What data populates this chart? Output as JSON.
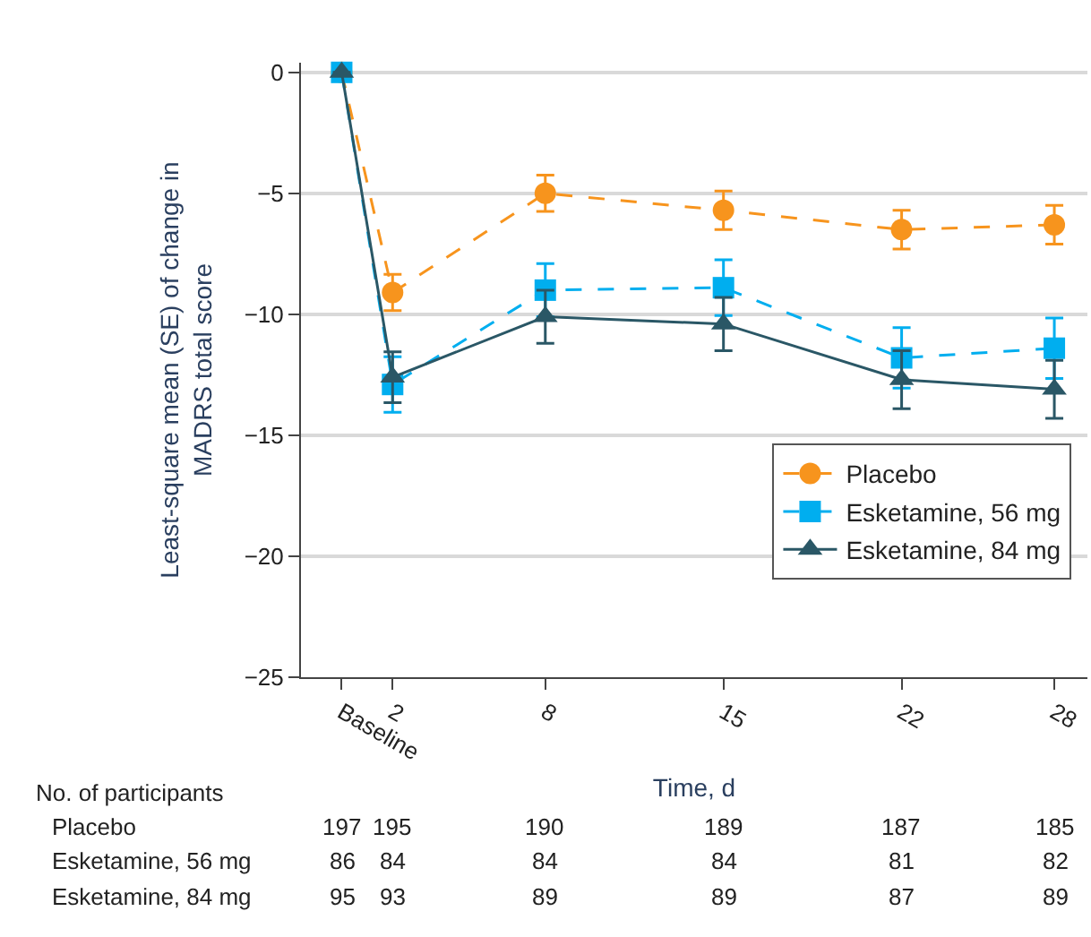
{
  "chart_data": {
    "type": "line",
    "xlabel": "Time, d",
    "ylabel": "Least-square mean (SE) of change in\nMADRS total score",
    "x": [
      0,
      2,
      8,
      15,
      22,
      28
    ],
    "xlim": [
      -1.6,
      29.3
    ],
    "xticks": [
      {
        "value": 0,
        "label": "Baseline"
      },
      2,
      8,
      15,
      22,
      28
    ],
    "ylim": [
      -25,
      0.4
    ],
    "yticks": [
      0,
      -5,
      -10,
      -15,
      -20,
      -25
    ],
    "grid": "y",
    "legend": "right",
    "series": [
      {
        "name": "Placebo",
        "color": "#f7941d",
        "marker": "circle",
        "line_style": "dashed",
        "values": [
          0,
          -9.1,
          -5.0,
          -5.7,
          -6.5,
          -6.3
        ],
        "errors": [
          null,
          0.75,
          0.75,
          0.8,
          0.8,
          0.8
        ]
      },
      {
        "name": "Esketamine, 56 mg",
        "color": "#00aeef",
        "marker": "square",
        "line_style": "dashed",
        "values": [
          0,
          -12.9,
          -9.0,
          -8.9,
          -11.8,
          -11.4
        ],
        "errors": [
          null,
          1.15,
          1.1,
          1.15,
          1.25,
          1.25
        ]
      },
      {
        "name": "Esketamine, 84 mg",
        "color": "#2a5766",
        "marker": "triangle",
        "line_style": "solid",
        "values": [
          0,
          -12.6,
          -10.1,
          -10.4,
          -12.7,
          -13.1
        ],
        "errors": [
          null,
          1.05,
          1.1,
          1.1,
          1.2,
          1.2
        ]
      }
    ],
    "annotations": [
      "No. of participants",
      "Placebo",
      "197",
      "195",
      "190",
      "189",
      "187",
      "185",
      "Esketamine, 56 mg",
      "86",
      "84",
      "84",
      "84",
      "81",
      "82",
      "Esketamine, 84 mg",
      "95",
      "93",
      "89",
      "89",
      "87",
      "89"
    ]
  }
}
